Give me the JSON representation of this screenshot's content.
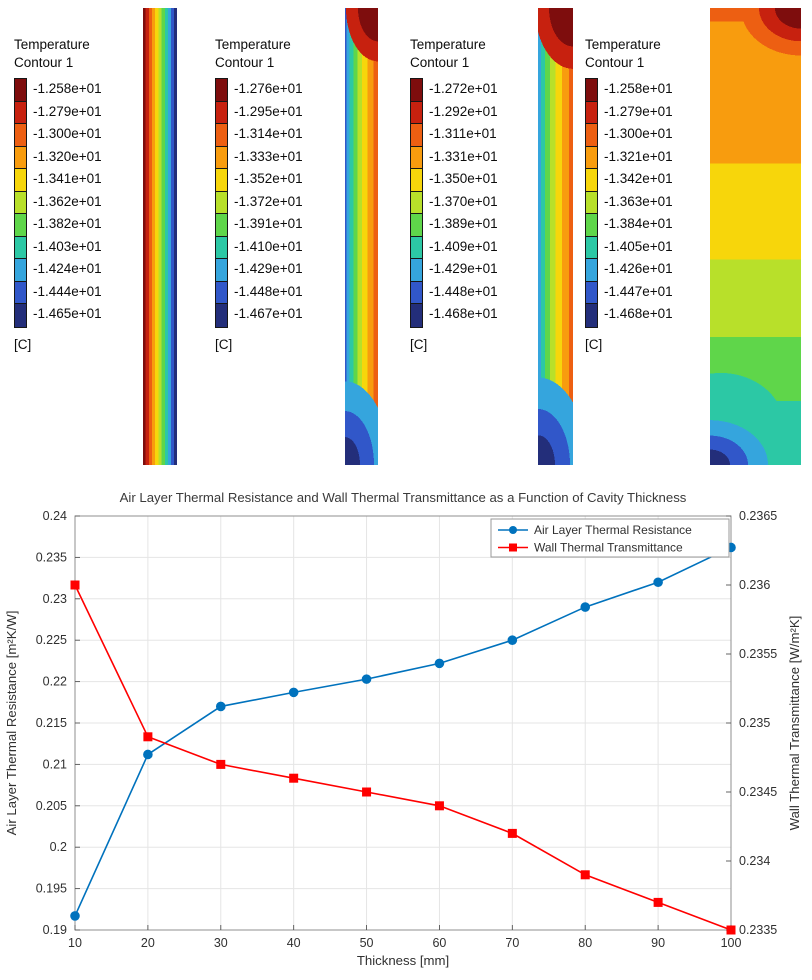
{
  "legend_colors": [
    "#7e0d0d",
    "#c7210f",
    "#ed5f12",
    "#f89c0e",
    "#f7d60b",
    "#b8e02a",
    "#5fd64a",
    "#2cc8a5",
    "#35a5dd",
    "#3157c9",
    "#232e7a"
  ],
  "contours": [
    {
      "title_line1": "Temperature",
      "title_line2": "Contour 1",
      "unit": "[C]",
      "values": [
        "-1.258e+01",
        "-1.279e+01",
        "-1.300e+01",
        "-1.320e+01",
        "-1.341e+01",
        "-1.362e+01",
        "-1.382e+01",
        "-1.403e+01",
        "-1.424e+01",
        "-1.444e+01",
        "-1.465e+01"
      ]
    },
    {
      "title_line1": "Temperature",
      "title_line2": "Contour 1",
      "unit": "[C]",
      "values": [
        "-1.276e+01",
        "-1.295e+01",
        "-1.314e+01",
        "-1.333e+01",
        "-1.352e+01",
        "-1.372e+01",
        "-1.391e+01",
        "-1.410e+01",
        "-1.429e+01",
        "-1.448e+01",
        "-1.467e+01"
      ]
    },
    {
      "title_line1": "Temperature",
      "title_line2": "Contour 1",
      "unit": "[C]",
      "values": [
        "-1.272e+01",
        "-1.292e+01",
        "-1.311e+01",
        "-1.331e+01",
        "-1.350e+01",
        "-1.370e+01",
        "-1.389e+01",
        "-1.409e+01",
        "-1.429e+01",
        "-1.448e+01",
        "-1.468e+01"
      ]
    },
    {
      "title_line1": "Temperature",
      "title_line2": "Contour 1",
      "unit": "[C]",
      "values": [
        "-1.258e+01",
        "-1.279e+01",
        "-1.300e+01",
        "-1.321e+01",
        "-1.342e+01",
        "-1.363e+01",
        "-1.384e+01",
        "-1.405e+01",
        "-1.426e+01",
        "-1.447e+01",
        "-1.468e+01"
      ]
    }
  ],
  "chart_data": {
    "type": "line",
    "title": "Air Layer Thermal Resistance and Wall Thermal Transmittance as a Function of Cavity Thickness",
    "xlabel": "Thickness [mm]",
    "ylabel_left": "Air Layer Thermal Resistance [m²K/W]",
    "ylabel_right": "Wall Thermal Transmittance [W/m²K]",
    "x": [
      10,
      20,
      30,
      40,
      50,
      60,
      70,
      80,
      90,
      100
    ],
    "xlim": [
      10,
      100
    ],
    "ylim_left": [
      0.19,
      0.24
    ],
    "ylim_right": [
      0.2335,
      0.2365
    ],
    "yticks_left": [
      "0.19",
      "0.195",
      "0.2",
      "0.205",
      "0.21",
      "0.215",
      "0.22",
      "0.225",
      "0.23",
      "0.235",
      "0.24"
    ],
    "yticks_right": [
      "0.2335",
      "0.234",
      "0.2345",
      "0.235",
      "0.2355",
      "0.236",
      "0.2365"
    ],
    "grid": true,
    "legend_position": "top-right",
    "series": [
      {
        "name": "Air Layer Thermal Resistance",
        "color": "#0072bd",
        "marker": "circle",
        "axis": "left",
        "values": [
          0.1917,
          0.2112,
          0.217,
          0.2187,
          0.2203,
          0.2222,
          0.225,
          0.229,
          0.232,
          0.2362
        ]
      },
      {
        "name": "Wall Thermal Transmittance",
        "color": "#ff0000",
        "marker": "square",
        "axis": "right",
        "values": [
          0.236,
          0.2349,
          0.2347,
          0.2346,
          0.2345,
          0.2344,
          0.2342,
          0.2339,
          0.2337,
          0.2335
        ]
      }
    ]
  }
}
